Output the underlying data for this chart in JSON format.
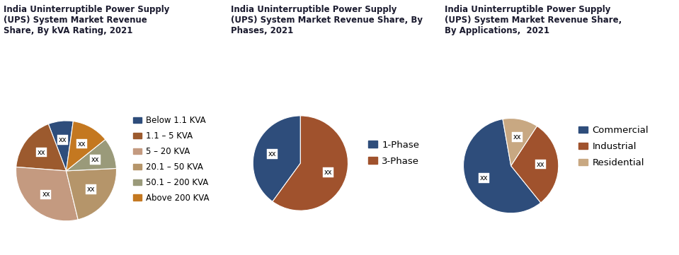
{
  "chart1": {
    "title": "India Uninterruptible Power Supply\n(UPS) System Market Revenue\nShare, By kVA Rating, 2021",
    "labels": [
      "Below 1.1 KVA",
      "1.1 – 5 KVA",
      "5 – 20 KVA",
      "20.1 – 50 KVA",
      "50.1 – 200 KVA",
      "Above 200 KVA"
    ],
    "sizes": [
      8,
      18,
      30,
      22,
      10,
      12
    ],
    "colors": [
      "#2e4d7b",
      "#9c5a2e",
      "#c49a80",
      "#b5956a",
      "#9a9a7a",
      "#c47820"
    ],
    "startangle": 82
  },
  "chart2": {
    "title": "India Uninterruptible Power Supply\n(UPS) System Market Revenue Share, By\nPhases, 2021",
    "labels": [
      "1-Phase",
      "3-Phase"
    ],
    "sizes": [
      40,
      60
    ],
    "colors": [
      "#2e4d7b",
      "#a0522d"
    ],
    "startangle": 90
  },
  "chart3": {
    "title": "India Uninterruptible Power Supply\n(UPS) System Market Revenue Share,\nBy Applications,  2021",
    "labels": [
      "Commercial",
      "Industrial",
      "Residential"
    ],
    "sizes": [
      58,
      30,
      12
    ],
    "colors": [
      "#2e4d7b",
      "#a0522d",
      "#c8a882"
    ],
    "startangle": 100
  },
  "label_text": "xx",
  "title_color": "#1a1a2e",
  "legend_fontsize": 8.5,
  "title_fontsize": 8.5,
  "bg_color": "#ffffff"
}
